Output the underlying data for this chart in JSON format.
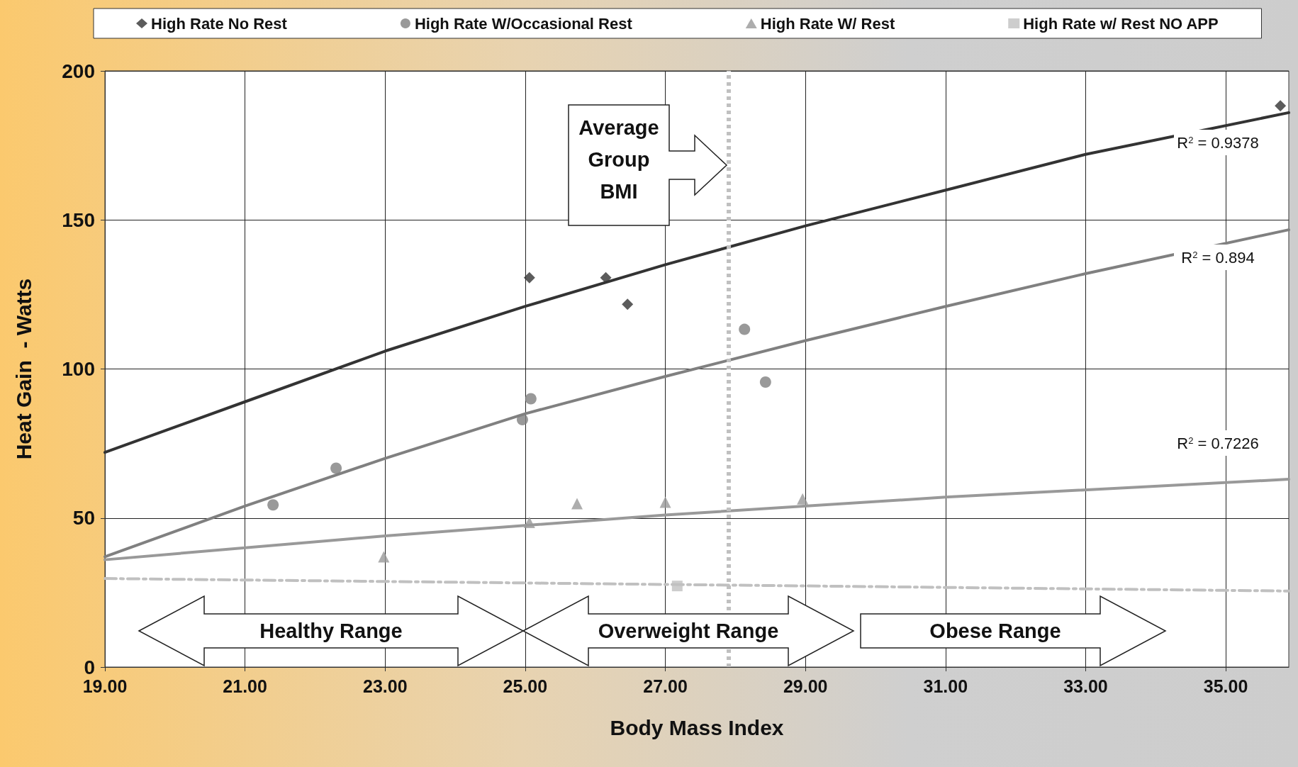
{
  "chart_data": {
    "type": "scatter",
    "xlabel": "Body Mass Index",
    "ylabel": "Heat Gain  - Watts",
    "xlim": [
      19,
      35.9
    ],
    "xticks": [
      {
        "value": 19,
        "label": "19.00"
      },
      {
        "value": 21,
        "label": "21.00"
      },
      {
        "value": 23,
        "label": "23.00"
      },
      {
        "value": 25,
        "label": "25.00"
      },
      {
        "value": 27,
        "label": "27.00"
      },
      {
        "value": 29,
        "label": "29.00"
      },
      {
        "value": 31,
        "label": "31.00"
      },
      {
        "value": 33,
        "label": "33.00"
      },
      {
        "value": 35,
        "label": "35.00"
      }
    ],
    "ylim": [
      0,
      200
    ],
    "yticks": [
      0,
      50,
      100,
      150,
      200
    ],
    "grid": true,
    "legend": "top",
    "series": [
      {
        "name": "High Rate No Rest",
        "type": "scatter",
        "marker": "diamond",
        "color": "#333333",
        "x": [
          25.06,
          26.15,
          26.46,
          35.78
        ],
        "values": [
          130.6,
          130.6,
          121.7,
          188.3
        ]
      },
      {
        "name": "High Rate W/Occasional Rest",
        "type": "scatter",
        "marker": "circle",
        "color": "#808080",
        "x": [
          21.4,
          22.3,
          24.96,
          25.08,
          28.13,
          28.43
        ],
        "values": [
          54.4,
          66.7,
          83,
          90,
          113.3,
          95.6
        ]
      },
      {
        "name": "High Rate W/ Rest",
        "type": "scatter",
        "marker": "triangle",
        "color": "#999999",
        "x": [
          22.98,
          25.06,
          25.74,
          27.0,
          28.96
        ],
        "values": [
          37,
          48.5,
          54.8,
          55.3,
          56.4
        ]
      },
      {
        "name": "High Rate w/ Rest NO APP",
        "type": "scatter",
        "marker": "square",
        "color": "#c0c0c0",
        "x": [
          27.17
        ],
        "values": [
          27.2
        ]
      },
      {
        "type": "line",
        "marker": "none",
        "line_style": "solid",
        "color": "#333333",
        "x": [
          19,
          21,
          23,
          25,
          27,
          29,
          31,
          33,
          35.9
        ],
        "values": [
          72,
          89,
          106,
          121,
          135,
          148,
          160,
          172,
          186
        ]
      },
      {
        "type": "line",
        "marker": "none",
        "line_style": "solid",
        "color": "#808080",
        "x": [
          19,
          21,
          23,
          25,
          27,
          29,
          31,
          33,
          35.9
        ],
        "values": [
          37,
          54,
          70,
          85,
          97.5,
          109.5,
          121,
          132,
          146.7
        ]
      },
      {
        "type": "line",
        "marker": "none",
        "line_style": "solid",
        "color": "#999999",
        "x": [
          19,
          23,
          27,
          31,
          35.9
        ],
        "values": [
          36,
          44,
          51,
          57,
          63
        ]
      },
      {
        "type": "line",
        "marker": "none",
        "line_style": "dashed",
        "color": "#c0c0c0",
        "x": [
          19,
          35.9
        ],
        "values": [
          29.7,
          25.5
        ]
      }
    ],
    "ref_lines": [
      {
        "axis": "x",
        "value": 27.9,
        "color": "#c0c0c0",
        "line_style": "dotted"
      }
    ],
    "annotations": [
      "Average Group BMI",
      "R$^{2}$ = 0.9378",
      "R$^{2}$ = 0.894",
      "R$^{2}$ = 0.7226",
      "Healthy Range",
      "Overweight Range",
      "Obese Range"
    ]
  }
}
